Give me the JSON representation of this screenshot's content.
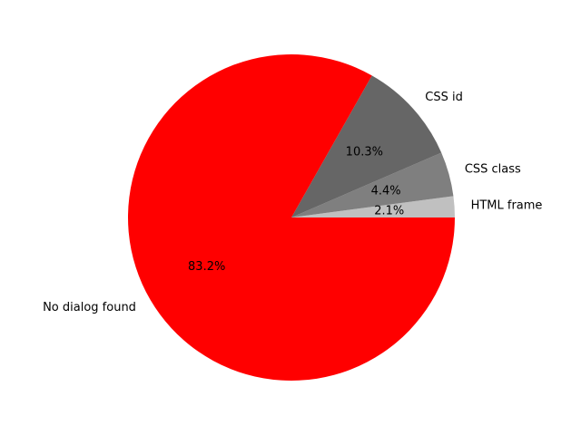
{
  "chart_data": {
    "type": "pie",
    "title": "",
    "start_angle_deg": 0,
    "direction": "counterclockwise",
    "slices": [
      {
        "label": "HTML frame",
        "value": 2.1,
        "pct_label": "2.1%",
        "color": "#c0c0c0"
      },
      {
        "label": "CSS class",
        "value": 4.4,
        "pct_label": "4.4%",
        "color": "#7f7f7f"
      },
      {
        "label": "CSS id",
        "value": 10.3,
        "pct_label": "10.3%",
        "color": "#666666"
      },
      {
        "label": "No dialog found",
        "value": 83.2,
        "pct_label": "83.2%",
        "color": "#ff0000"
      }
    ]
  }
}
